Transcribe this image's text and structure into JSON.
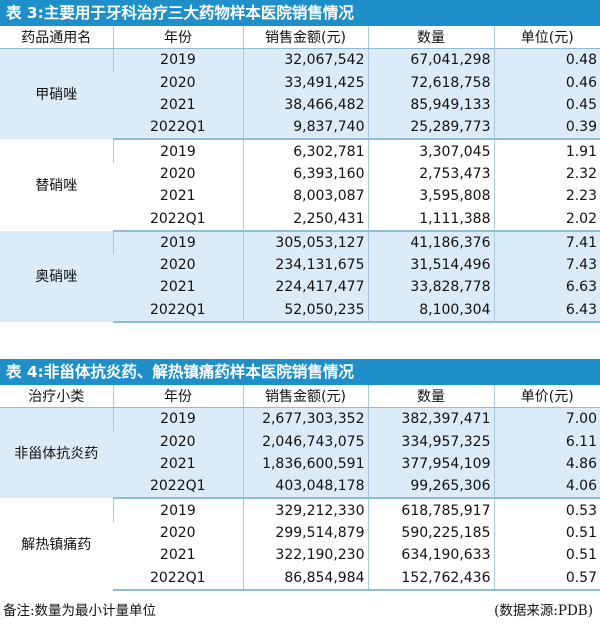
{
  "table3": {
    "title": "表 3:主要用于牙科治疗三大药物样本医院销售情况",
    "headers": [
      "药品通用名",
      "年份",
      "销售金额(元)",
      "数量",
      "单位(元)"
    ],
    "groups": [
      {
        "name": "甲硝唑",
        "rows": [
          {
            "year": "2019",
            "sales": "32,067,542",
            "qty": "67,041,298",
            "unit": "0.48"
          },
          {
            "year": "2020",
            "sales": "33,491,425",
            "qty": "72,618,758",
            "unit": "0.46"
          },
          {
            "year": "2021",
            "sales": "38,466,482",
            "qty": "85,949,133",
            "unit": "0.45"
          },
          {
            "year": "2022Q1",
            "sales": "9,837,740",
            "qty": "25,289,773",
            "unit": "0.39"
          }
        ]
      },
      {
        "name": "替硝唑",
        "rows": [
          {
            "year": "2019",
            "sales": "6,302,781",
            "qty": "3,307,045",
            "unit": "1.91"
          },
          {
            "year": "2020",
            "sales": "6,393,160",
            "qty": "2,753,473",
            "unit": "2.32"
          },
          {
            "year": "2021",
            "sales": "8,003,087",
            "qty": "3,595,808",
            "unit": "2.23"
          },
          {
            "year": "2022Q1",
            "sales": "2,250,431",
            "qty": "1,111,388",
            "unit": "2.02"
          }
        ]
      },
      {
        "name": "奥硝唑",
        "rows": [
          {
            "year": "2019",
            "sales": "305,053,127",
            "qty": "41,186,376",
            "unit": "7.41"
          },
          {
            "year": "2020",
            "sales": "234,131,675",
            "qty": "31,514,496",
            "unit": "7.43"
          },
          {
            "year": "2021",
            "sales": "224,417,477",
            "qty": "33,828,778",
            "unit": "6.63"
          },
          {
            "year": "2022Q1",
            "sales": "52,050,235",
            "qty": "8,100,304",
            "unit": "6.43"
          }
        ]
      }
    ]
  },
  "table4": {
    "title": "表 4:非甾体抗炎药、解热镇痛药样本医院销售情况",
    "headers": [
      "治疗小类",
      "年份",
      "销售金额(元)",
      "数量",
      "单价(元)"
    ],
    "groups": [
      {
        "name": "非甾体抗炎药",
        "rows": [
          {
            "year": "2019",
            "sales": "2,677,303,352",
            "qty": "382,397,471",
            "unit": "7.00"
          },
          {
            "year": "2020",
            "sales": "2,046,743,075",
            "qty": "334,957,325",
            "unit": "6.11"
          },
          {
            "year": "2021",
            "sales": "1,836,600,591",
            "qty": "377,954,109",
            "unit": "4.86"
          },
          {
            "year": "2022Q1",
            "sales": "403,048,178",
            "qty": "99,265,306",
            "unit": "4.06"
          }
        ]
      },
      {
        "name": "解热镇痛药",
        "rows": [
          {
            "year": "2019",
            "sales": "329,212,330",
            "qty": "618,785,917",
            "unit": "0.53"
          },
          {
            "year": "2020",
            "sales": "299,514,879",
            "qty": "590,225,185",
            "unit": "0.51"
          },
          {
            "year": "2021",
            "sales": "322,190,230",
            "qty": "634,190,633",
            "unit": "0.51"
          },
          {
            "year": "2022Q1",
            "sales": "86,854,984",
            "qty": "152,762,436",
            "unit": "0.57"
          }
        ]
      }
    ]
  },
  "footer": {
    "note": "备注:数量为最小计量单位",
    "source": "(数据来源:PDB)"
  },
  "colors": {
    "title_bar": "#1f8fc9",
    "band_blue": "#dcebf8",
    "rule": "#8fbcd8"
  }
}
